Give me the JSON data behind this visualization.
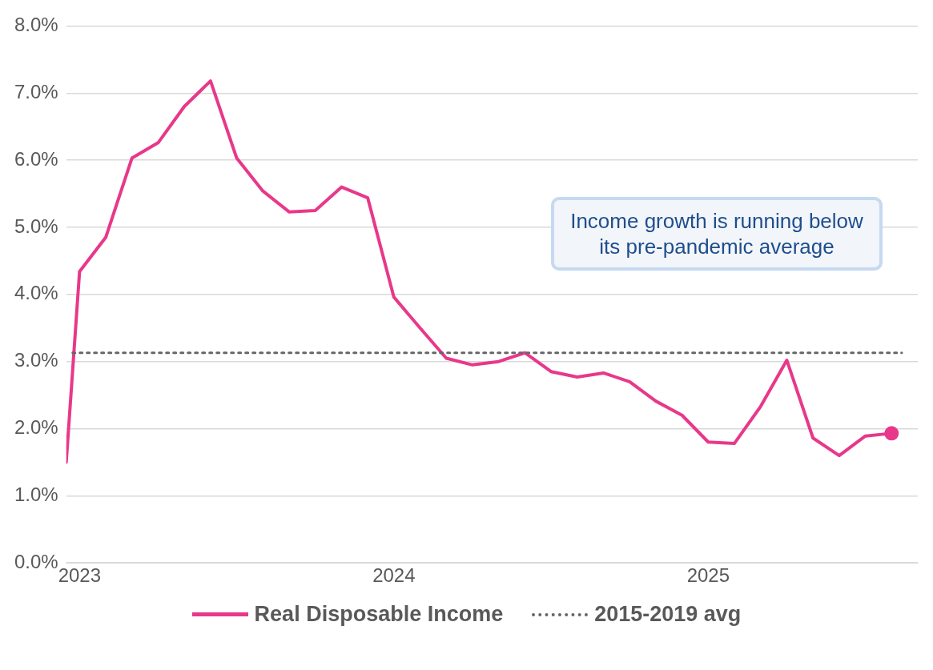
{
  "chart_data": {
    "type": "line",
    "x": [
      "2022-12-16",
      "2023-01",
      "2023-02",
      "2023-03",
      "2023-04",
      "2023-05",
      "2023-06",
      "2023-07",
      "2023-08",
      "2023-09",
      "2023-10",
      "2023-11",
      "2023-12",
      "2024-01",
      "2024-02",
      "2024-03",
      "2024-04",
      "2024-05",
      "2024-06",
      "2024-07",
      "2024-08",
      "2024-09",
      "2024-10",
      "2024-11",
      "2024-12",
      "2025-01",
      "2025-02",
      "2025-03",
      "2025-04",
      "2025-05",
      "2025-06",
      "2025-07",
      "2025-08"
    ],
    "series": [
      {
        "name": "Real Disposable Income",
        "color": "#e8388a",
        "values": [
          1.5,
          4.34,
          4.85,
          6.03,
          6.26,
          6.8,
          7.18,
          6.03,
          5.54,
          5.23,
          5.25,
          5.6,
          5.44,
          3.96,
          3.5,
          3.05,
          2.95,
          3.0,
          3.13,
          2.85,
          2.77,
          2.83,
          2.7,
          2.41,
          2.2,
          1.8,
          1.78,
          2.33,
          3.02,
          1.86,
          1.6,
          1.89,
          1.93
        ]
      }
    ],
    "xlim": [
      "2022-12-16",
      "2025-09-01"
    ],
    "xticks": [
      {
        "value": "2023-01",
        "label": "2023"
      },
      {
        "value": "2024-01",
        "label": "2024"
      },
      {
        "value": "2025-01",
        "label": "2025"
      }
    ],
    "ylim": [
      0,
      8
    ],
    "yticks": [
      {
        "value": 0,
        "label": "0.0%"
      },
      {
        "value": 1,
        "label": "1.0%"
      },
      {
        "value": 2,
        "label": "2.0%"
      },
      {
        "value": 3,
        "label": "3.0%"
      },
      {
        "value": 4,
        "label": "4.0%"
      },
      {
        "value": 5,
        "label": "5.0%"
      },
      {
        "value": 6,
        "label": "6.0%"
      },
      {
        "value": 7,
        "label": "7.0%"
      },
      {
        "value": 8,
        "label": "8.0%"
      }
    ],
    "ref_lines": [
      {
        "axis": "y",
        "value": 3.13,
        "label": "2015-2019 avg",
        "color": "#666666",
        "line_style": "dotted"
      }
    ],
    "annotations": [
      "Income growth is running below its pre-pandemic average"
    ],
    "grid": "y",
    "legend": "bottom"
  }
}
